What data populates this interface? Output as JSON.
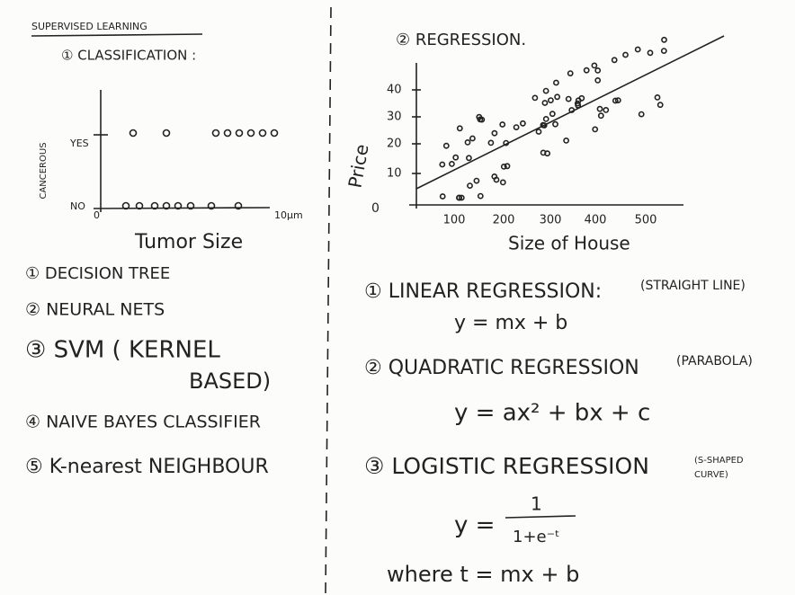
{
  "left": {
    "heading": "SUPERVISED LEARNING",
    "section": "① CLASSIFICATION :",
    "chart": {
      "y_label": "CANCEROUS",
      "y_ticks": [
        "YES",
        "NO"
      ],
      "x_origin": "0",
      "x_end": "10µm",
      "x_label": "Tumor Size"
    },
    "list": [
      "① DECISION TREE",
      "② NEURAL NETS",
      "③ SVM ( KERNEL",
      "BASED)",
      "④ NAIVE BAYES CLASSIFIER",
      "⑤ K-nearest NEIGHBOUR"
    ]
  },
  "right": {
    "section": "② REGRESSION.",
    "chart": {
      "y_label": "Price",
      "y_ticks": [
        10,
        20,
        30,
        40
      ],
      "origin": 0,
      "x_ticks": [
        100,
        200,
        300,
        400,
        500
      ],
      "x_label": "Size of House"
    },
    "items": [
      {
        "title": "① LINEAR REGRESSION:",
        "note": [
          "(STRAIGHT LINE)"
        ],
        "formula": "y = mx + b"
      },
      {
        "title": "② QUADRATIC REGRESSION",
        "note": [
          "(PARABOLA)"
        ],
        "formula": "y = ax² + bx + c"
      },
      {
        "title": "③ LOGISTIC REGRESSION",
        "note": [
          "(S-SHAPED",
          "CURVE)"
        ],
        "formula": {
          "lhs": "y =",
          "numerator": "1",
          "denominator": "1+e⁻ᵗ"
        }
      }
    ],
    "footer": "where t = mx + b"
  }
}
